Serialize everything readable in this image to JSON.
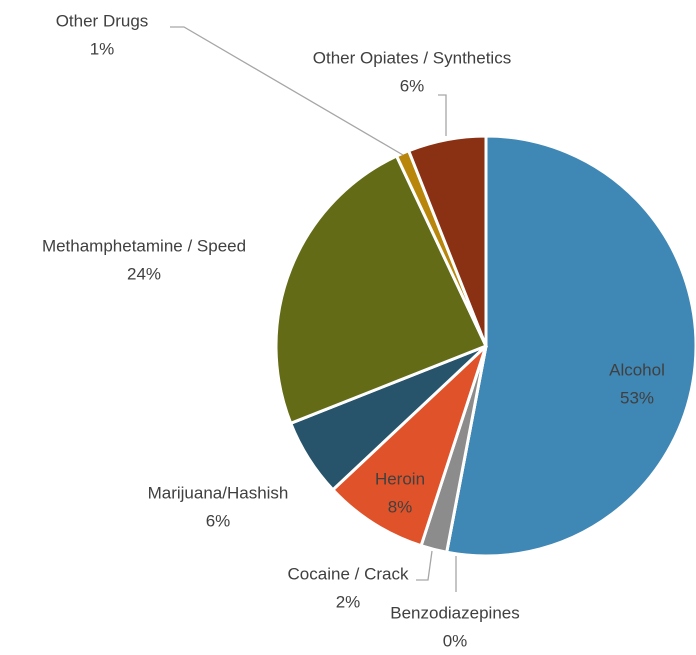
{
  "chart_data": {
    "type": "pie",
    "categories": [
      "Alcohol",
      "Benzodiazepines",
      "Cocaine / Crack",
      "Heroin",
      "Marijuana/Hashish",
      "Methamphetamine / Speed",
      "Other Drugs",
      "Other Opiates / Synthetics"
    ],
    "values": [
      53,
      0,
      2,
      8,
      6,
      24,
      1,
      6
    ],
    "value_labels": [
      "53%",
      "0%",
      "2%",
      "8%",
      "6%",
      "24%",
      "1%",
      "6%"
    ],
    "colors": [
      "#3f87b5",
      "#e6dcc0",
      "#8c8c8c",
      "#e0522a",
      "#27536b",
      "#636b17",
      "#b8860b",
      "#8a3013"
    ]
  }
}
